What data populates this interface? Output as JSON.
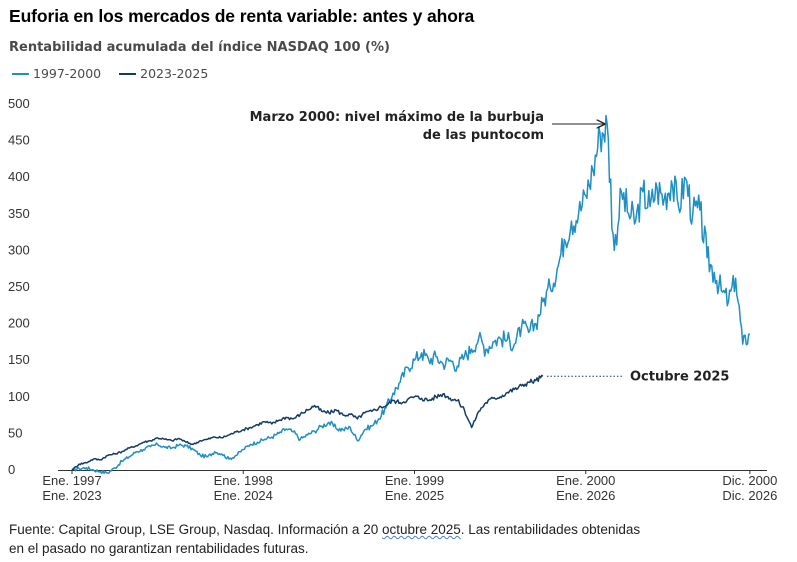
{
  "header": {
    "title": "Euforia en los mercados de renta variable: antes y ahora",
    "subtitle": "Rentabilidad acumulada del índice NASDAQ 100 (%)"
  },
  "colors": {
    "series_1997": "#1f8fc4",
    "series_2023": "#123c66",
    "axis": "#333333",
    "annotation": "#222222"
  },
  "chart_data": {
    "type": "line",
    "ylim": [
      0,
      500
    ],
    "yticks": [
      0,
      50,
      100,
      150,
      200,
      250,
      300,
      350,
      400,
      450,
      500
    ],
    "xlim": [
      0,
      48
    ],
    "xticks": [
      {
        "pos": 0,
        "top": "Ene. 1997",
        "bottom": "Ene. 2023"
      },
      {
        "pos": 12,
        "top": "Ene. 1998",
        "bottom": "Ene. 2024"
      },
      {
        "pos": 24,
        "top": "Ene. 1999",
        "bottom": "Ene. 2025"
      },
      {
        "pos": 36,
        "top": "Ene. 2000",
        "bottom": "Ene. 2026"
      },
      {
        "pos": 47.5,
        "top": "Dic. 2000",
        "bottom": "Dic. 2026"
      }
    ],
    "grid": false,
    "legend_position": "top-left",
    "series": [
      {
        "name": "1997-2000",
        "color": "#1f8fc4",
        "points": [
          [
            0,
            0
          ],
          [
            0.5,
            2
          ],
          [
            1,
            3
          ],
          [
            1.5,
            0
          ],
          [
            2,
            -2
          ],
          [
            2.5,
            -4
          ],
          [
            3,
            3
          ],
          [
            3.5,
            12
          ],
          [
            4,
            18
          ],
          [
            4.5,
            25
          ],
          [
            5,
            28
          ],
          [
            5.5,
            32
          ],
          [
            6,
            35
          ],
          [
            6.5,
            31
          ],
          [
            7,
            30
          ],
          [
            7.5,
            34
          ],
          [
            8,
            33
          ],
          [
            8.5,
            28
          ],
          [
            9,
            20
          ],
          [
            9.5,
            18
          ],
          [
            10,
            25
          ],
          [
            10.5,
            22
          ],
          [
            11,
            15
          ],
          [
            11.5,
            20
          ],
          [
            12,
            28
          ],
          [
            12.5,
            35
          ],
          [
            13,
            38
          ],
          [
            13.5,
            42
          ],
          [
            14,
            45
          ],
          [
            14.5,
            50
          ],
          [
            15,
            56
          ],
          [
            15.5,
            52
          ],
          [
            16,
            42
          ],
          [
            16.5,
            48
          ],
          [
            17,
            53
          ],
          [
            17.5,
            60
          ],
          [
            18,
            65
          ],
          [
            18.5,
            57
          ],
          [
            19,
            55
          ],
          [
            19.5,
            58
          ],
          [
            20,
            40
          ],
          [
            20.5,
            55
          ],
          [
            21,
            60
          ],
          [
            21.5,
            70
          ],
          [
            22,
            85
          ],
          [
            22.5,
            105
          ],
          [
            23,
            120
          ],
          [
            23.5,
            140
          ],
          [
            24,
            150
          ],
          [
            24.5,
            160
          ],
          [
            25,
            150
          ],
          [
            25.5,
            155
          ],
          [
            26,
            145
          ],
          [
            26.5,
            150
          ],
          [
            27,
            142
          ],
          [
            27.5,
            155
          ],
          [
            28,
            165
          ],
          [
            28.5,
            180
          ],
          [
            29,
            165
          ],
          [
            29.5,
            175
          ],
          [
            30,
            180
          ],
          [
            30.5,
            178
          ],
          [
            31,
            172
          ],
          [
            31.5,
            195
          ],
          [
            32,
            188
          ],
          [
            32.5,
            200
          ],
          [
            33,
            230
          ],
          [
            33.5,
            250
          ],
          [
            34,
            275
          ],
          [
            34.5,
            315
          ],
          [
            35,
            340
          ],
          [
            35.5,
            350
          ],
          [
            36,
            375
          ],
          [
            36.5,
            410
          ],
          [
            37,
            460
          ],
          [
            37.5,
            472
          ],
          [
            38,
            300
          ],
          [
            38.5,
            380
          ],
          [
            39,
            350
          ],
          [
            39.5,
            340
          ],
          [
            40,
            380
          ],
          [
            40.5,
            360
          ],
          [
            41,
            385
          ],
          [
            41.5,
            370
          ],
          [
            42,
            395
          ],
          [
            42.5,
            360
          ],
          [
            43,
            398
          ],
          [
            43.5,
            350
          ],
          [
            44,
            355
          ],
          [
            44.5,
            290
          ],
          [
            45,
            270
          ],
          [
            45.5,
            245
          ],
          [
            46,
            230
          ],
          [
            46.5,
            262
          ],
          [
            47,
            172
          ],
          [
            47.5,
            185
          ]
        ]
      },
      {
        "name": "2023-2025",
        "color": "#123c66",
        "points": [
          [
            0,
            0
          ],
          [
            0.5,
            8
          ],
          [
            1,
            10
          ],
          [
            1.5,
            15
          ],
          [
            2,
            14
          ],
          [
            2.5,
            20
          ],
          [
            3,
            22
          ],
          [
            3.5,
            25
          ],
          [
            4,
            30
          ],
          [
            4.5,
            33
          ],
          [
            5,
            38
          ],
          [
            5.5,
            40
          ],
          [
            6,
            44
          ],
          [
            6.5,
            42
          ],
          [
            7,
            40
          ],
          [
            7.5,
            43
          ],
          [
            8,
            38
          ],
          [
            8.5,
            35
          ],
          [
            9,
            40
          ],
          [
            9.5,
            42
          ],
          [
            10,
            45
          ],
          [
            10.5,
            44
          ],
          [
            11,
            48
          ],
          [
            11.5,
            52
          ],
          [
            12,
            55
          ],
          [
            12.5,
            58
          ],
          [
            13,
            62
          ],
          [
            13.5,
            66
          ],
          [
            14,
            63
          ],
          [
            14.5,
            68
          ],
          [
            15,
            72
          ],
          [
            15.5,
            70
          ],
          [
            16,
            76
          ],
          [
            16.5,
            82
          ],
          [
            17,
            88
          ],
          [
            17.5,
            80
          ],
          [
            18,
            78
          ],
          [
            18.5,
            82
          ],
          [
            19,
            75
          ],
          [
            19.5,
            76
          ],
          [
            20,
            70
          ],
          [
            20.5,
            78
          ],
          [
            21,
            80
          ],
          [
            21.5,
            85
          ],
          [
            22,
            88
          ],
          [
            22.5,
            95
          ],
          [
            23,
            92
          ],
          [
            23.5,
            96
          ],
          [
            24,
            100
          ],
          [
            24.5,
            98
          ],
          [
            25,
            95
          ],
          [
            25.5,
            100
          ],
          [
            26,
            104
          ],
          [
            26.5,
            98
          ],
          [
            27,
            95
          ],
          [
            27.5,
            82
          ],
          [
            28,
            58
          ],
          [
            28.5,
            80
          ],
          [
            29,
            92
          ],
          [
            29.5,
            98
          ],
          [
            30,
            100
          ],
          [
            30.5,
            106
          ],
          [
            31,
            110
          ],
          [
            31.5,
            115
          ],
          [
            32,
            120
          ],
          [
            32.5,
            122
          ],
          [
            33,
            128
          ]
        ]
      }
    ],
    "annotations": [
      {
        "lines": [
          "Marzo 2000: nivel máximo de la burbuja",
          "de las puntocom"
        ]
      },
      {
        "lines": [
          "Octubre 2025"
        ]
      }
    ]
  },
  "footer": {
    "line1_pre": "Fuente: Capital Group, LSE Group, Nasdaq. Información a 20 ",
    "line1_squiggle": "octubre 2025",
    "line1_post": ". Las rentabilidades obtenidas",
    "line2": "en el pasado no garantizan rentabilidades futuras."
  }
}
